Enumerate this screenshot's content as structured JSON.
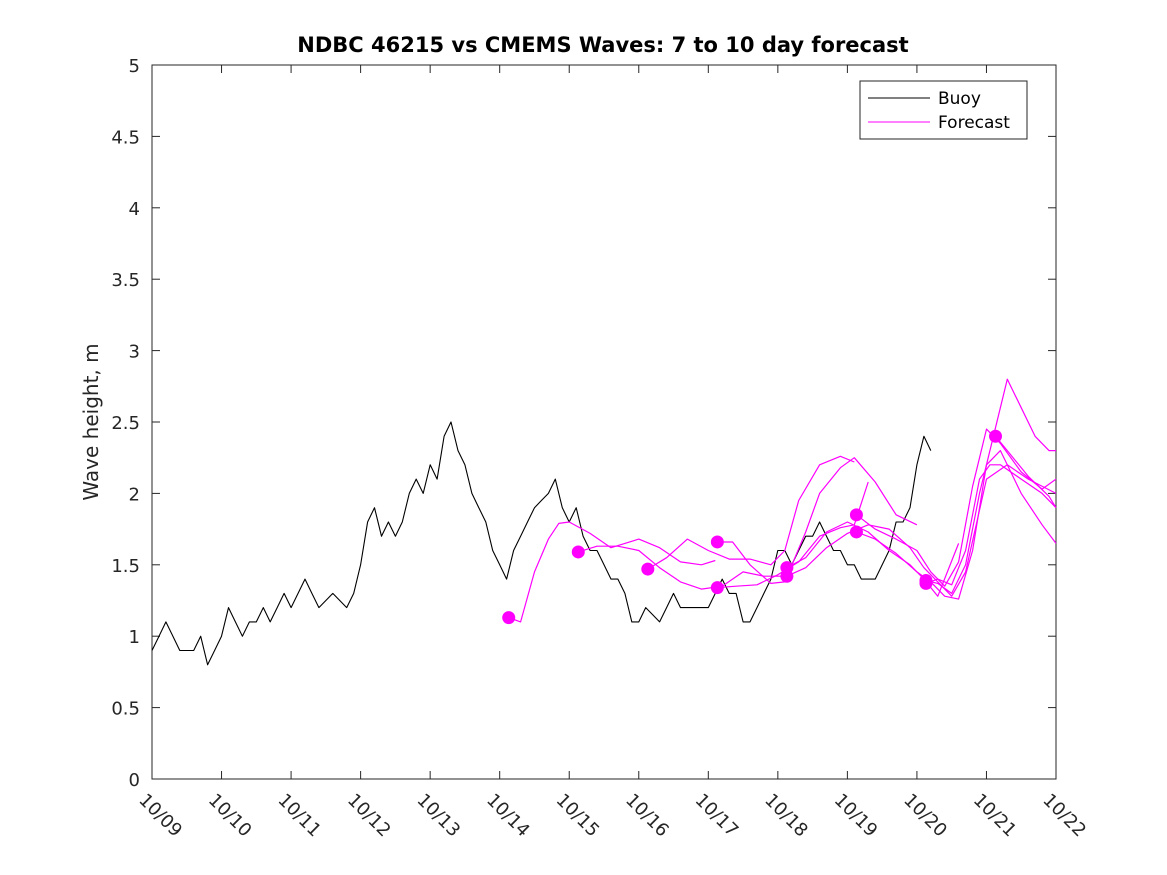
{
  "chart_data": {
    "type": "line",
    "title": "NDBC 46215 vs CMEMS Waves: 7 to 10 day forecast",
    "xlabel": "",
    "ylabel": "Wave height, m",
    "xlim": [
      0,
      13
    ],
    "ylim": [
      0,
      5
    ],
    "x_tick_labels": [
      "10/09",
      "10/10",
      "10/11",
      "10/12",
      "10/13",
      "10/14",
      "10/15",
      "10/16",
      "10/17",
      "10/18",
      "10/19",
      "10/20",
      "10/21",
      "10/22"
    ],
    "y_ticks": [
      0,
      0.5,
      1,
      1.5,
      2,
      2.5,
      3,
      3.5,
      4,
      4.5,
      5
    ],
    "y_tick_labels": [
      "0",
      "0.5",
      "1",
      "1.5",
      "2",
      "2.5",
      "3",
      "3.5",
      "4",
      "4.5",
      "5"
    ],
    "legend": {
      "position": "top-right",
      "entries": [
        {
          "label": "Buoy",
          "color": "#000000"
        },
        {
          "label": "Forecast",
          "color": "#ff00ff"
        }
      ]
    },
    "colors": {
      "buoy": "#000000",
      "forecast": "#ff00ff",
      "axis": "#262626"
    },
    "buoy": {
      "name": "Buoy",
      "points": [
        [
          0.0,
          0.9
        ],
        [
          0.1,
          1.0
        ],
        [
          0.2,
          1.1
        ],
        [
          0.3,
          1.0
        ],
        [
          0.4,
          0.9
        ],
        [
          0.6,
          0.9
        ],
        [
          0.7,
          1.0
        ],
        [
          0.8,
          0.8
        ],
        [
          0.9,
          0.9
        ],
        [
          1.0,
          1.0
        ],
        [
          1.1,
          1.2
        ],
        [
          1.2,
          1.1
        ],
        [
          1.3,
          1.0
        ],
        [
          1.4,
          1.1
        ],
        [
          1.5,
          1.1
        ],
        [
          1.6,
          1.2
        ],
        [
          1.7,
          1.1
        ],
        [
          1.8,
          1.2
        ],
        [
          1.9,
          1.3
        ],
        [
          2.0,
          1.2
        ],
        [
          2.2,
          1.4
        ],
        [
          2.3,
          1.3
        ],
        [
          2.4,
          1.2
        ],
        [
          2.6,
          1.3
        ],
        [
          2.8,
          1.2
        ],
        [
          2.9,
          1.3
        ],
        [
          3.0,
          1.5
        ],
        [
          3.1,
          1.8
        ],
        [
          3.2,
          1.9
        ],
        [
          3.3,
          1.7
        ],
        [
          3.4,
          1.8
        ],
        [
          3.5,
          1.7
        ],
        [
          3.6,
          1.8
        ],
        [
          3.7,
          2.0
        ],
        [
          3.8,
          2.1
        ],
        [
          3.9,
          2.0
        ],
        [
          4.0,
          2.2
        ],
        [
          4.1,
          2.1
        ],
        [
          4.2,
          2.4
        ],
        [
          4.3,
          2.5
        ],
        [
          4.4,
          2.3
        ],
        [
          4.5,
          2.2
        ],
        [
          4.6,
          2.0
        ],
        [
          4.7,
          1.9
        ],
        [
          4.8,
          1.8
        ],
        [
          4.9,
          1.6
        ],
        [
          5.0,
          1.5
        ],
        [
          5.1,
          1.4
        ],
        [
          5.2,
          1.6
        ],
        [
          5.3,
          1.7
        ],
        [
          5.4,
          1.8
        ],
        [
          5.5,
          1.9
        ],
        [
          5.6,
          1.95
        ],
        [
          5.7,
          2.0
        ],
        [
          5.8,
          2.1
        ],
        [
          5.9,
          1.9
        ],
        [
          6.0,
          1.8
        ],
        [
          6.1,
          1.9
        ],
        [
          6.2,
          1.7
        ],
        [
          6.3,
          1.6
        ],
        [
          6.4,
          1.6
        ],
        [
          6.5,
          1.5
        ],
        [
          6.6,
          1.4
        ],
        [
          6.7,
          1.4
        ],
        [
          6.8,
          1.3
        ],
        [
          6.9,
          1.1
        ],
        [
          7.0,
          1.1
        ],
        [
          7.1,
          1.2
        ],
        [
          7.2,
          1.15
        ],
        [
          7.3,
          1.1
        ],
        [
          7.4,
          1.2
        ],
        [
          7.5,
          1.3
        ],
        [
          7.6,
          1.2
        ],
        [
          7.7,
          1.2
        ],
        [
          7.8,
          1.2
        ],
        [
          7.9,
          1.2
        ],
        [
          8.0,
          1.2
        ],
        [
          8.1,
          1.3
        ],
        [
          8.2,
          1.4
        ],
        [
          8.3,
          1.3
        ],
        [
          8.4,
          1.3
        ],
        [
          8.5,
          1.1
        ],
        [
          8.6,
          1.1
        ],
        [
          8.7,
          1.2
        ],
        [
          8.8,
          1.3
        ],
        [
          8.9,
          1.4
        ],
        [
          9.0,
          1.6
        ],
        [
          9.1,
          1.6
        ],
        [
          9.2,
          1.5
        ],
        [
          9.3,
          1.6
        ],
        [
          9.4,
          1.7
        ],
        [
          9.5,
          1.7
        ],
        [
          9.6,
          1.8
        ],
        [
          9.7,
          1.7
        ],
        [
          9.8,
          1.6
        ],
        [
          9.9,
          1.6
        ],
        [
          10.0,
          1.5
        ],
        [
          10.1,
          1.5
        ],
        [
          10.2,
          1.4
        ],
        [
          10.3,
          1.4
        ],
        [
          10.4,
          1.4
        ],
        [
          10.5,
          1.5
        ],
        [
          10.6,
          1.6
        ],
        [
          10.7,
          1.8
        ],
        [
          10.8,
          1.8
        ],
        [
          10.9,
          1.9
        ],
        [
          11.0,
          2.2
        ],
        [
          11.1,
          2.4
        ],
        [
          11.2,
          2.3
        ]
      ]
    },
    "forecast": {
      "name": "Forecast",
      "series": [
        {
          "start": [
            5.13,
            1.13
          ],
          "points": [
            [
              5.13,
              1.13
            ],
            [
              5.3,
              1.1
            ],
            [
              5.5,
              1.45
            ],
            [
              5.7,
              1.68
            ],
            [
              5.85,
              1.79
            ],
            [
              6.0,
              1.8
            ],
            [
              6.3,
              1.72
            ],
            [
              6.6,
              1.62
            ],
            [
              7.0,
              1.68
            ],
            [
              7.3,
              1.62
            ],
            [
              7.6,
              1.52
            ],
            [
              7.9,
              1.5
            ],
            [
              8.1,
              1.53
            ]
          ]
        },
        {
          "start": [
            6.13,
            1.59
          ],
          "points": [
            [
              6.13,
              1.59
            ],
            [
              6.4,
              1.63
            ],
            [
              6.7,
              1.63
            ],
            [
              7.0,
              1.6
            ],
            [
              7.3,
              1.48
            ],
            [
              7.6,
              1.38
            ],
            [
              7.9,
              1.33
            ],
            [
              8.2,
              1.35
            ],
            [
              8.5,
              1.45
            ],
            [
              8.8,
              1.42
            ],
            [
              9.1,
              1.42
            ]
          ]
        },
        {
          "start": [
            7.13,
            1.47
          ],
          "points": [
            [
              7.13,
              1.47
            ],
            [
              7.4,
              1.55
            ],
            [
              7.7,
              1.68
            ],
            [
              8.0,
              1.6
            ],
            [
              8.3,
              1.54
            ],
            [
              8.6,
              1.54
            ],
            [
              8.9,
              1.5
            ],
            [
              9.1,
              1.6
            ],
            [
              9.3,
              1.95
            ],
            [
              9.6,
              2.2
            ],
            [
              9.9,
              2.26
            ],
            [
              10.1,
              2.22
            ]
          ]
        },
        {
          "start": [
            8.13,
            1.66
          ],
          "points": [
            [
              8.13,
              1.66
            ],
            [
              8.35,
              1.66
            ],
            [
              8.6,
              1.5
            ],
            [
              8.9,
              1.37
            ],
            [
              9.1,
              1.38
            ],
            [
              9.4,
              1.73
            ],
            [
              9.6,
              2.0
            ],
            [
              9.9,
              2.18
            ],
            [
              10.1,
              2.25
            ],
            [
              10.4,
              2.08
            ],
            [
              10.7,
              1.85
            ],
            [
              11.0,
              1.78
            ]
          ]
        },
        {
          "start": [
            8.13,
            1.34
          ],
          "points": [
            [
              8.13,
              1.34
            ],
            [
              8.4,
              1.35
            ],
            [
              8.7,
              1.36
            ],
            [
              9.0,
              1.43
            ],
            [
              9.3,
              1.52
            ],
            [
              9.6,
              1.7
            ],
            [
              9.9,
              1.76
            ],
            [
              10.1,
              1.78
            ],
            [
              10.3,
              2.08
            ]
          ]
        },
        {
          "start": [
            9.13,
            1.48
          ],
          "points": [
            [
              9.13,
              1.48
            ],
            [
              9.4,
              1.55
            ],
            [
              9.7,
              1.73
            ],
            [
              10.0,
              1.8
            ],
            [
              10.3,
              1.73
            ],
            [
              10.6,
              1.6
            ],
            [
              10.9,
              1.5
            ],
            [
              11.1,
              1.4
            ],
            [
              11.3,
              1.28
            ],
            [
              11.6,
              1.65
            ]
          ]
        },
        {
          "start": [
            9.13,
            1.42
          ],
          "points": [
            [
              9.13,
              1.42
            ],
            [
              9.4,
              1.48
            ],
            [
              9.7,
              1.62
            ],
            [
              10.0,
              1.72
            ],
            [
              10.3,
              1.78
            ],
            [
              10.6,
              1.75
            ],
            [
              10.9,
              1.62
            ],
            [
              11.1,
              1.48
            ],
            [
              11.3,
              1.38
            ],
            [
              11.5,
              1.28
            ],
            [
              11.7,
              1.45
            ],
            [
              12.0,
              2.1
            ],
            [
              12.3,
              2.2
            ],
            [
              12.6,
              2.1
            ],
            [
              13.0,
              2.0
            ]
          ]
        },
        {
          "start": [
            10.13,
            1.85
          ],
          "points": [
            [
              10.13,
              1.85
            ],
            [
              10.4,
              1.75
            ],
            [
              10.7,
              1.68
            ],
            [
              11.0,
              1.6
            ],
            [
              11.2,
              1.45
            ],
            [
              11.4,
              1.35
            ],
            [
              11.6,
              1.52
            ],
            [
              11.8,
              2.05
            ],
            [
              12.0,
              2.45
            ],
            [
              12.2,
              2.35
            ],
            [
              12.5,
              2.15
            ],
            [
              12.8,
              2.03
            ],
            [
              13.0,
              2.1
            ]
          ]
        },
        {
          "start": [
            10.13,
            1.73
          ],
          "points": [
            [
              10.13,
              1.73
            ],
            [
              10.4,
              1.68
            ],
            [
              10.7,
              1.58
            ],
            [
              11.0,
              1.45
            ],
            [
              11.2,
              1.38
            ],
            [
              11.4,
              1.28
            ],
            [
              11.6,
              1.26
            ],
            [
              11.8,
              1.6
            ],
            [
              12.0,
              2.2
            ],
            [
              12.2,
              2.3
            ],
            [
              12.5,
              2.0
            ],
            [
              12.8,
              1.78
            ],
            [
              13.0,
              1.65
            ]
          ]
        },
        {
          "start": [
            11.13,
            1.39
          ],
          "points": [
            [
              11.13,
              1.39
            ],
            [
              11.3,
              1.37
            ],
            [
              11.5,
              1.3
            ],
            [
              11.7,
              1.5
            ],
            [
              11.9,
              2.0
            ],
            [
              12.1,
              2.4
            ],
            [
              12.3,
              2.8
            ],
            [
              12.5,
              2.6
            ],
            [
              12.7,
              2.4
            ],
            [
              12.9,
              2.3
            ],
            [
              13.0,
              2.3
            ]
          ]
        },
        {
          "start": [
            11.13,
            1.37
          ],
          "points": [
            [
              11.13,
              1.37
            ],
            [
              11.3,
              1.4
            ],
            [
              11.5,
              1.36
            ],
            [
              11.7,
              1.6
            ],
            [
              11.9,
              2.1
            ],
            [
              12.05,
              2.2
            ],
            [
              12.2,
              2.2
            ],
            [
              12.5,
              2.1
            ],
            [
              12.8,
              2.0
            ],
            [
              13.0,
              1.9
            ]
          ]
        },
        {
          "start": [
            12.13,
            2.4
          ],
          "points": [
            [
              12.13,
              2.4
            ],
            [
              12.3,
              2.3
            ],
            [
              12.6,
              2.12
            ],
            [
              12.9,
              1.98
            ],
            [
              13.0,
              1.9
            ]
          ]
        }
      ]
    }
  }
}
